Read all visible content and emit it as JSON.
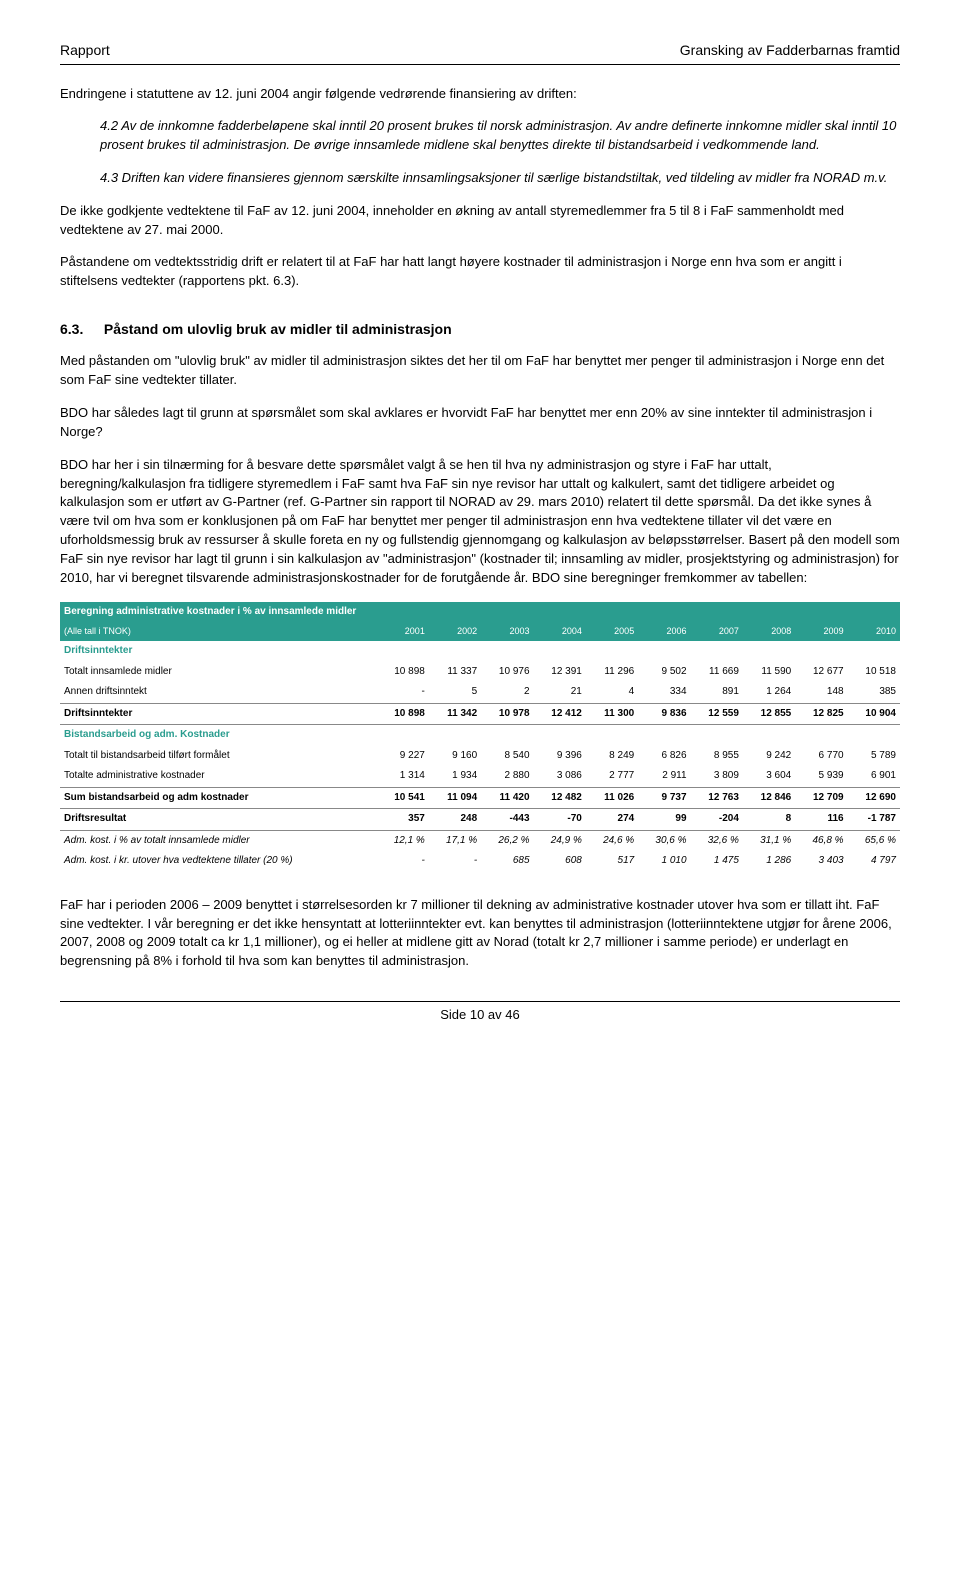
{
  "header": {
    "left": "Rapport",
    "right": "Gransking av Fadderbarnas framtid"
  },
  "intro": "Endringene i statuttene av 12. juni 2004 angir følgende vedrørende finansiering av driften:",
  "quote42": "4.2 Av de innkomne fadderbeløpene skal inntil 20 prosent brukes til norsk administrasjon. Av andre definerte innkomne midler skal inntil 10 prosent brukes til administrasjon. De øvrige innsamlede midlene skal benyttes direkte til bistandsarbeid i vedkommende land.",
  "quote43": "4.3 Driften kan videre finansieres gjennom særskilte innsamlingsaksjoner til særlige bistandstiltak, ved tildeling av midler fra NORAD m.v.",
  "p1": "De ikke godkjente vedtektene til FaF av 12. juni 2004, inneholder en økning av antall styremedlemmer fra 5 til 8 i FaF sammenholdt med vedtektene av 27. mai 2000.",
  "p2": "Påstandene om vedtektsstridig drift er relatert til at FaF har hatt langt høyere kostnader til administrasjon i Norge enn hva som er angitt i stiftelsens vedtekter (rapportens pkt. 6.3).",
  "section": {
    "num": "6.3.",
    "title": "Påstand om ulovlig bruk av midler til administrasjon"
  },
  "p3": "Med påstanden om \"ulovlig bruk\" av midler til administrasjon siktes det her til om FaF har benyttet mer penger til administrasjon i Norge enn det som FaF sine vedtekter tillater.",
  "p4": "BDO har således lagt til grunn at spørsmålet som skal avklares er hvorvidt FaF har benyttet mer enn 20% av sine inntekter til administrasjon i Norge?",
  "p5": "BDO har her i sin tilnærming for å besvare dette spørsmålet valgt å se hen til hva ny administrasjon og styre i FaF har uttalt, beregning/kalkulasjon fra tidligere styremedlem i FaF samt hva FaF sin nye revisor har uttalt og kalkulert, samt det tidligere arbeidet og kalkulasjon som er utført av G-Partner (ref. G-Partner sin rapport til NORAD av 29. mars 2010) relatert til dette spørsmål. Da det ikke synes å være tvil om hva som er konklusjonen på om FaF har benyttet mer penger til administrasjon enn hva vedtektene tillater vil det være en uforholdsmessig bruk av ressurser å skulle foreta en ny og fullstendig gjennomgang og kalkulasjon av beløpsstørrelser. Basert på den modell som FaF sin nye revisor har lagt til grunn i sin kalkulasjon av \"administrasjon\" (kostnader til; innsamling av midler, prosjektstyring og administrasjon) for 2010, har vi beregnet tilsvarende administrasjonskostnader for de forutgående år. BDO sine beregninger fremkommer av tabellen:",
  "table": {
    "title": "Beregning administrative kostnader i % av innsamlede midler",
    "subtitle": "(Alle tall i TNOK)",
    "years": [
      "2001",
      "2002",
      "2003",
      "2004",
      "2005",
      "2006",
      "2007",
      "2008",
      "2009",
      "2010"
    ],
    "sec1": "Driftsinntekter",
    "rows1": [
      {
        "label": "Totalt innsamlede midler",
        "v": [
          "10 898",
          "11 337",
          "10 976",
          "12 391",
          "11 296",
          "9 502",
          "11 669",
          "11 590",
          "12 677",
          "10 518"
        ]
      },
      {
        "label": "Annen driftsinntekt",
        "v": [
          "-",
          "5",
          "2",
          "21",
          "4",
          "334",
          "891",
          "1 264",
          "148",
          "385"
        ]
      }
    ],
    "sum1": {
      "label": "Driftsinntekter",
      "v": [
        "10 898",
        "11 342",
        "10 978",
        "12 412",
        "11 300",
        "9 836",
        "12 559",
        "12 855",
        "12 825",
        "10 904"
      ]
    },
    "sec2": "Bistandsarbeid og adm. Kostnader",
    "rows2": [
      {
        "label": "Totalt til bistandsarbeid tilført formålet",
        "v": [
          "9 227",
          "9 160",
          "8 540",
          "9 396",
          "8 249",
          "6 826",
          "8 955",
          "9 242",
          "6 770",
          "5 789"
        ]
      },
      {
        "label": "Totalte administrative kostnader",
        "v": [
          "1 314",
          "1 934",
          "2 880",
          "3 086",
          "2 777",
          "2 911",
          "3 809",
          "3 604",
          "5 939",
          "6 901"
        ]
      }
    ],
    "sum2": {
      "label": "Sum bistandsarbeid og adm kostnader",
      "v": [
        "10 541",
        "11 094",
        "11 420",
        "12 482",
        "11 026",
        "9 737",
        "12 763",
        "12 846",
        "12 709",
        "12 690"
      ]
    },
    "result": {
      "label": "Driftsresultat",
      "v": [
        "357",
        "248",
        "-443",
        "-70",
        "274",
        "99",
        "-204",
        "8",
        "116",
        "-1 787"
      ]
    },
    "pct": {
      "label": "Adm. kost. i % av totalt innsamlede midler",
      "v": [
        "12,1 %",
        "17,1 %",
        "26,2 %",
        "24,9 %",
        "24,6 %",
        "30,6 %",
        "32,6 %",
        "31,1 %",
        "46,8 %",
        "65,6 %"
      ]
    },
    "excess": {
      "label": "Adm. kost. i kr. utover hva vedtektene tillater (20 %)",
      "v": [
        "-",
        "-",
        "685",
        "608",
        "517",
        "1 010",
        "1 475",
        "1 286",
        "3 403",
        "4 797"
      ]
    }
  },
  "p6": "FaF har i perioden 2006 – 2009 benyttet i størrelsesorden kr 7 millioner til dekning av administrative kostnader utover hva som er tillatt iht. FaF sine vedtekter. I vår beregning er det ikke hensyntatt at lotteriinntekter evt. kan benyttes til administrasjon (lotteriinntektene utgjør for årene 2006, 2007, 2008 og 2009 totalt ca kr 1,1 millioner), og ei heller at midlene gitt av Norad (totalt kr 2,7 millioner i samme periode) er underlagt en begrensning på 8% i forhold til hva som kan benyttes til administrasjon.",
  "footer": "Side 10 av 46",
  "colors": {
    "teal": "#2a9d8f"
  }
}
